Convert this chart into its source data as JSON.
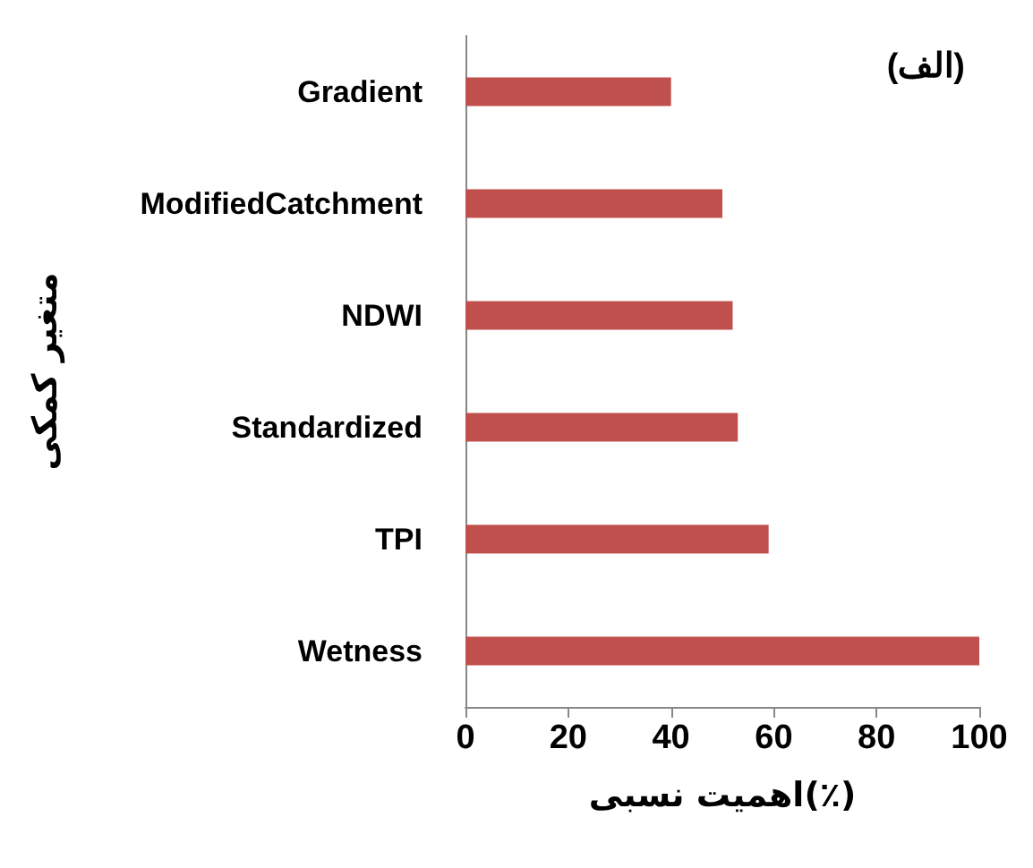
{
  "chart_data": {
    "type": "bar",
    "orientation": "horizontal",
    "categories": [
      "Gradient",
      "ModifiedCatchment",
      "NDWI",
      "Standardized",
      "TPI",
      "Wetness"
    ],
    "values": [
      40,
      50,
      52,
      53,
      59,
      100
    ],
    "color": "#c0504d",
    "xlim": [
      0,
      100
    ],
    "xticks": [
      0,
      20,
      40,
      60,
      80,
      100
    ],
    "grid": false,
    "xlabel": "اهمیت نسبی(٪)",
    "ylabel": "متغیر کمکی",
    "annotations": [
      "(الف)"
    ]
  }
}
